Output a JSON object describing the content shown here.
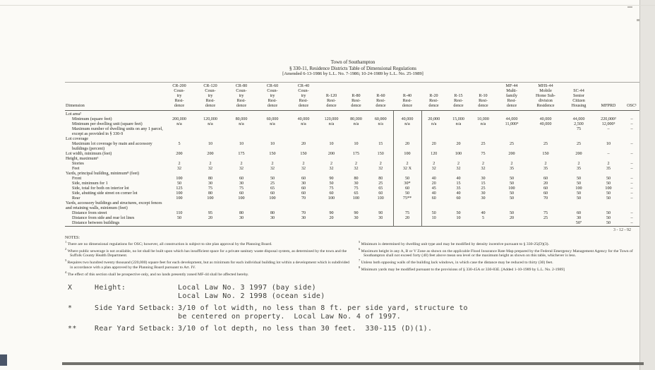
{
  "header": {
    "line1": "Town of Southampton",
    "line2": "§ 330-11, Residence Districts Table of Dimensional Regulations",
    "line3": "[Amended 6-13-1986 by L.L. No. 7-1986; 10-24-1989 by L.L. No. 25-1989]"
  },
  "table": {
    "label_header": "Dimension",
    "columns": [
      {
        "id": "cr200",
        "lines": [
          "CR-200",
          "Coun-",
          "try",
          "Resi-",
          "dence"
        ]
      },
      {
        "id": "cr120",
        "lines": [
          "CR-120",
          "Coun-",
          "try",
          "Resi-",
          "dence"
        ]
      },
      {
        "id": "cr80",
        "lines": [
          "CR-80",
          "Coun-",
          "try",
          "Resi-",
          "dence"
        ]
      },
      {
        "id": "cr60",
        "lines": [
          "CR-60",
          "Coun-",
          "try",
          "Resi-",
          "dence"
        ]
      },
      {
        "id": "cr40",
        "lines": [
          "CR-40",
          "Coun-",
          "try",
          "Resi-",
          "dence"
        ]
      },
      {
        "id": "r120",
        "lines": [
          "R-120",
          "Resi-",
          "dence"
        ]
      },
      {
        "id": "r80",
        "lines": [
          "R-80",
          "Resi-",
          "dence"
        ]
      },
      {
        "id": "r60",
        "lines": [
          "R-60",
          "Resi-",
          "dence"
        ]
      },
      {
        "id": "r40",
        "lines": [
          "R-40",
          "Resi-",
          "dence"
        ],
        "highlight": true
      },
      {
        "id": "r20",
        "lines": [
          "R-20",
          "Resi-",
          "dence"
        ]
      },
      {
        "id": "r15",
        "lines": [
          "R-15",
          "Resi-",
          "dence"
        ]
      },
      {
        "id": "r10",
        "lines": [
          "R-10",
          "Resi-",
          "dence"
        ]
      },
      {
        "id": "mf44",
        "lines": [
          "MF-44",
          "Multi-",
          "family",
          "Resi-",
          "dence"
        ]
      },
      {
        "id": "mhs44",
        "lines": [
          "MHS-44",
          "Mobile",
          "Home Sub-",
          "division",
          "Residence"
        ]
      },
      {
        "id": "sc44",
        "lines": [
          "SC-44",
          "Senior",
          "Citizen",
          "Housing"
        ]
      },
      {
        "id": "mfprd",
        "lines": [
          "MFPRD"
        ]
      },
      {
        "id": "osc",
        "lines": [
          "OSC¹"
        ]
      }
    ],
    "rows": [
      {
        "label": "Lot area²",
        "section": true
      },
      {
        "label": "Minimum (square feet)",
        "indent": 1,
        "values": [
          "200,000",
          "120,000",
          "80,000",
          "60,000",
          "40,000",
          "120,000",
          "80,000",
          "60,000",
          "40,000",
          "20,000",
          "15,000",
          "10,000",
          "44,000",
          "40,000",
          "44,000",
          "220,000²",
          "–"
        ]
      },
      {
        "label": "Minimum per dwelling unit (square feet)",
        "indent": 1,
        "values": [
          "n/a",
          "n/a",
          "n/a",
          "n/a",
          "n/a",
          "n/a",
          "n/a",
          "n/a",
          "n/a",
          "n/a",
          "n/a",
          "n/a",
          "11,000⁴",
          "40,000",
          "2,500",
          "12,000³",
          "–"
        ]
      },
      {
        "label": "Maximum number of dwelling units on any 1 parcel, except as provided in § 330-9",
        "indent": 1,
        "values": [
          "",
          "",
          "",
          "",
          "",
          "",
          "",
          "",
          "",
          "",
          "",
          "",
          "",
          "",
          "75",
          "–",
          "–"
        ]
      },
      {
        "label": "Lot coverage",
        "section": true
      },
      {
        "label": "Maximum lot coverage by main and accessory buildings (percent)",
        "indent": 1,
        "values": [
          "5",
          "10",
          "10",
          "10",
          "20",
          "10",
          "10",
          "15",
          "20",
          "20",
          "20",
          "25",
          "25",
          "25",
          "25",
          "10",
          "–"
        ]
      },
      {
        "label": "Lot width, minimum (feet)",
        "values": [
          "200",
          "200",
          "175",
          "150",
          "150",
          "200",
          "175",
          "150",
          "100",
          "120",
          "100",
          "75",
          "200",
          "150",
          "200",
          "–",
          "–"
        ]
      },
      {
        "label": "Height, maximum⁶",
        "section": true
      },
      {
        "label": "Stories",
        "indent": 1,
        "values": [
          "2",
          "2",
          "2",
          "2",
          "2",
          "2",
          "2",
          "2",
          "2",
          "2",
          "2",
          "2",
          "2",
          "2",
          "2",
          "2",
          "–"
        ]
      },
      {
        "label": "Feet",
        "indent": 1,
        "values": [
          "32",
          "32",
          "32",
          "32",
          "32",
          "32",
          "32",
          "32",
          "32 X",
          "32",
          "32",
          "32",
          "35",
          "35",
          "35",
          "35",
          "–"
        ]
      },
      {
        "label": "Yards, principal building, minimum⁸ (feet)",
        "section": true
      },
      {
        "label": "Front",
        "indent": 1,
        "values": [
          "100",
          "80",
          "60",
          "50",
          "60",
          "90",
          "80",
          "80",
          "50",
          "40",
          "40",
          "30",
          "50",
          "60",
          "50",
          "50",
          "–"
        ]
      },
      {
        "label": "Side, minimum for 1",
        "indent": 1,
        "values": [
          "50",
          "30",
          "30",
          "25",
          "30",
          "50",
          "30",
          "25",
          "30*",
          "20",
          "15",
          "15",
          "50",
          "20",
          "50",
          "50",
          "–"
        ]
      },
      {
        "label": "Side, total for both on interior lot",
        "indent": 1,
        "values": [
          "125",
          "75",
          "75",
          "65",
          "60",
          "75",
          "75",
          "65",
          "60",
          "45",
          "35",
          "25",
          "100",
          "60",
          "100",
          "100",
          "–"
        ]
      },
      {
        "label": "Side, abutting side street on corner lot",
        "indent": 1,
        "values": [
          "100",
          "80",
          "60",
          "60",
          "60",
          "60",
          "65",
          "60",
          "50",
          "40",
          "40",
          "30",
          "50",
          "60",
          "50",
          "50",
          "–"
        ]
      },
      {
        "label": "Rear",
        "indent": 1,
        "values": [
          "100",
          "100",
          "100",
          "100",
          "70",
          "100",
          "100",
          "100",
          "75**",
          "60",
          "60",
          "30",
          "50",
          "70",
          "50",
          "50",
          "–"
        ]
      },
      {
        "label": "Yards, accessory buildings and structures, except fences and retaining walls, minimum (feet)",
        "section": true
      },
      {
        "label": "Distance from street",
        "indent": 1,
        "values": [
          "110",
          "95",
          "80",
          "80",
          "70",
          "90",
          "90",
          "90",
          "75",
          "50",
          "50",
          "40",
          "50",
          "75",
          "60",
          "50",
          "–"
        ]
      },
      {
        "label": "Distance from side and rear lot lines",
        "indent": 1,
        "values": [
          "50",
          "20",
          "30",
          "30",
          "30",
          "20",
          "30",
          "30",
          "20",
          "10",
          "10",
          "5",
          "20",
          "25",
          "30",
          "50",
          "–"
        ]
      },
      {
        "label": "Distance between buildings",
        "indent": 1,
        "values": [
          "",
          "",
          "",
          "",
          "",
          "",
          "",
          "",
          "",
          "",
          "",
          "",
          "",
          "",
          "50⁷",
          "50",
          "–"
        ]
      }
    ]
  },
  "footer": {
    "date_mark": "3 - 12 - 92"
  },
  "notes": {
    "title": "NOTES:",
    "left": [
      {
        "num": "1",
        "text": "There are no dimensional regulations for OSC; however, all construction is subject to site plan approval by the Planning Board."
      },
      {
        "num": "2",
        "text": "Where public sewerage is not available, no lot shall be built upon which has insufficient space for a private sanitary waste disposal system, as determined by the town and the Suffolk County Health Department."
      },
      {
        "num": "3",
        "text": "Requires two hundred twenty thousand (220,000) square feet for each development, but as minimum for each individual building lot within a development which is subdivided in accordance with a plan approved by the Planning Board pursuant to Art. IV."
      },
      {
        "num": "4",
        "text": "The effect of this section shall be prospective only, and no lands presently zoned MF-44 shall be affected hereby."
      }
    ],
    "right": [
      {
        "num": "5",
        "text": "Minimum is determined by dwelling unit type and may be modified by density incentive pursuant to § 330-25(D)(3)."
      },
      {
        "num": "6",
        "text": "Maximum height in any A, B or V Zone as shown on the applicable Flood Insurance Rate Map prepared by the Federal Emergency Management Agency for the Town of Southampton shall not exceed forty (40) feet above mean sea level or the maximum height as shown on this table, whichever is less."
      },
      {
        "num": "7",
        "text": "Unless both opposing walls of the building lack windows, in which case the distance may be reduced to thirty (30) feet."
      },
      {
        "num": "8",
        "text": "Minimum yards may be modified pursuant to the provisions of § 330-45A or 330-83E. [Added 1-10-1989 by L.L. No. 2-1989]"
      }
    ]
  },
  "annotations": [
    {
      "mark": "X",
      "label": "Height:",
      "lines": [
        "Local Law No. 3 1997 (bay side)",
        "Local Law No. 2 1998 (ocean side)"
      ]
    },
    {
      "mark": "*",
      "label": "Side Yard Setback:",
      "lines": [
        "3/10 of lot width, no less than 8 ft. per side yard, structure to",
        "be centered on property.  Local Law No. 4 of 1997."
      ]
    },
    {
      "mark": "**",
      "label": "Rear Yard Setback:",
      "lines": [
        "3/10 of lot depth, no less than 30 feet.  330-115 (D)(1)."
      ]
    }
  ],
  "colors": {
    "paper": "#fbfaf6",
    "ink": "#45443e",
    "rule": "#62615b"
  }
}
